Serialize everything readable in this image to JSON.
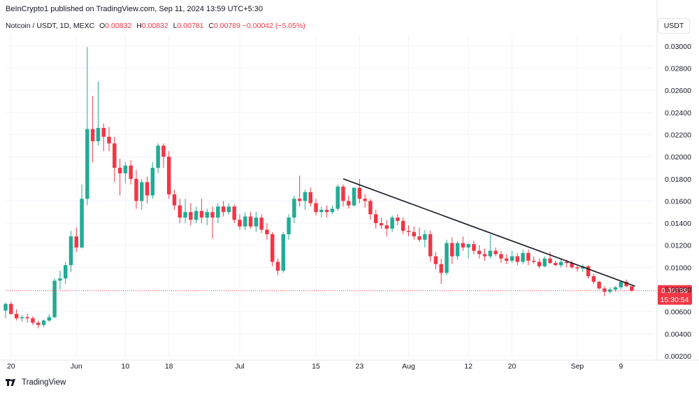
{
  "publisher_line": "BeInCrypto1 published on TradingView.com, Sep 11, 2024 13:59 UTC+5:30",
  "legend": {
    "symbol": "Notcoin / USDT, 1D, MEXC",
    "o_label": "O",
    "o_value": "0.00832",
    "h_label": "H",
    "h_value": "0.00832",
    "l_label": "L",
    "l_value": "0.00781",
    "c_label": "C",
    "c_value": "0.00789",
    "change": "−0.00042 (−5.05%)"
  },
  "currency_button": "USDT",
  "price_tag": {
    "price": "0.00789",
    "countdown": "15:30:54"
  },
  "footer": {
    "brand": "TradingView",
    "logo": "tradingview-logo-icon"
  },
  "colors": {
    "up": "#22ab94",
    "down": "#f23645",
    "trendline": "#131722",
    "grid": "#f0f3fa"
  },
  "chart_data": {
    "type": "candlestick",
    "y_axis": {
      "min": 0.002,
      "max": 0.031,
      "position": "right",
      "ticks": [
        "0.03000",
        "0.02800",
        "0.02600",
        "0.02400",
        "0.02200",
        "0.02000",
        "0.01800",
        "0.01600",
        "0.01400",
        "0.01200",
        "0.01000",
        "0.00800",
        "0.00600",
        "0.00400",
        "0.00200"
      ]
    },
    "x_axis": {
      "start_date": "2024-05-19",
      "end_date": "2024-09-15",
      "labels": [
        {
          "text": "20",
          "date": "2024-05-20"
        },
        {
          "text": "Jun",
          "date": "2024-06-01"
        },
        {
          "text": "10",
          "date": "2024-06-10"
        },
        {
          "text": "18",
          "date": "2024-06-18"
        },
        {
          "text": "Jul",
          "date": "2024-07-01"
        },
        {
          "text": "15",
          "date": "2024-07-15"
        },
        {
          "text": "23",
          "date": "2024-07-23"
        },
        {
          "text": "Aug",
          "date": "2024-08-01"
        },
        {
          "text": "12",
          "date": "2024-08-12"
        },
        {
          "text": "20",
          "date": "2024-08-20"
        },
        {
          "text": "Sep",
          "date": "2024-09-01"
        },
        {
          "text": "9",
          "date": "2024-09-09"
        }
      ]
    },
    "grid": true,
    "last_price_line": 0.00789,
    "trendline": {
      "from": {
        "date": "2024-07-20",
        "price": 0.018
      },
      "to": {
        "date": "2024-09-11",
        "price": 0.0083
      }
    },
    "candles": [
      {
        "d": "2024-05-19",
        "o": 0.0061,
        "h": 0.0068,
        "l": 0.0054,
        "c": 0.0067
      },
      {
        "d": "2024-05-20",
        "o": 0.0067,
        "h": 0.0069,
        "l": 0.0057,
        "c": 0.0058
      },
      {
        "d": "2024-05-21",
        "o": 0.0058,
        "h": 0.0062,
        "l": 0.0052,
        "c": 0.0054
      },
      {
        "d": "2024-05-22",
        "o": 0.0054,
        "h": 0.0057,
        "l": 0.0051,
        "c": 0.0055
      },
      {
        "d": "2024-05-23",
        "o": 0.0055,
        "h": 0.0058,
        "l": 0.005,
        "c": 0.0054
      },
      {
        "d": "2024-05-24",
        "o": 0.0054,
        "h": 0.0056,
        "l": 0.0048,
        "c": 0.005
      },
      {
        "d": "2024-05-25",
        "o": 0.005,
        "h": 0.0052,
        "l": 0.0045,
        "c": 0.0048
      },
      {
        "d": "2024-05-26",
        "o": 0.0048,
        "h": 0.0053,
        "l": 0.0046,
        "c": 0.0052
      },
      {
        "d": "2024-05-27",
        "o": 0.0052,
        "h": 0.0058,
        "l": 0.0051,
        "c": 0.0055
      },
      {
        "d": "2024-05-28",
        "o": 0.0055,
        "h": 0.009,
        "l": 0.0054,
        "c": 0.0088
      },
      {
        "d": "2024-05-29",
        "o": 0.0088,
        "h": 0.0097,
        "l": 0.008,
        "c": 0.009
      },
      {
        "d": "2024-05-30",
        "o": 0.009,
        "h": 0.0105,
        "l": 0.0085,
        "c": 0.0102
      },
      {
        "d": "2024-05-31",
        "o": 0.0102,
        "h": 0.0133,
        "l": 0.0096,
        "c": 0.0128
      },
      {
        "d": "2024-06-01",
        "o": 0.0128,
        "h": 0.0136,
        "l": 0.0114,
        "c": 0.0118
      },
      {
        "d": "2024-06-02",
        "o": 0.0118,
        "h": 0.0175,
        "l": 0.0117,
        "c": 0.0162
      },
      {
        "d": "2024-06-03",
        "o": 0.0162,
        "h": 0.0299,
        "l": 0.0156,
        "c": 0.0225
      },
      {
        "d": "2024-06-04",
        "o": 0.0225,
        "h": 0.0255,
        "l": 0.0195,
        "c": 0.0214
      },
      {
        "d": "2024-06-05",
        "o": 0.0214,
        "h": 0.0268,
        "l": 0.021,
        "c": 0.0226
      },
      {
        "d": "2024-06-06",
        "o": 0.0226,
        "h": 0.023,
        "l": 0.0205,
        "c": 0.0218
      },
      {
        "d": "2024-06-07",
        "o": 0.0218,
        "h": 0.0227,
        "l": 0.0205,
        "c": 0.0212
      },
      {
        "d": "2024-06-08",
        "o": 0.0212,
        "h": 0.0218,
        "l": 0.0177,
        "c": 0.019
      },
      {
        "d": "2024-06-09",
        "o": 0.019,
        "h": 0.0198,
        "l": 0.0165,
        "c": 0.0185
      },
      {
        "d": "2024-06-10",
        "o": 0.0185,
        "h": 0.0195,
        "l": 0.0176,
        "c": 0.0192
      },
      {
        "d": "2024-06-11",
        "o": 0.0192,
        "h": 0.0197,
        "l": 0.0175,
        "c": 0.018
      },
      {
        "d": "2024-06-12",
        "o": 0.018,
        "h": 0.0188,
        "l": 0.0153,
        "c": 0.016
      },
      {
        "d": "2024-06-13",
        "o": 0.016,
        "h": 0.018,
        "l": 0.0152,
        "c": 0.0177
      },
      {
        "d": "2024-06-14",
        "o": 0.0177,
        "h": 0.0182,
        "l": 0.0158,
        "c": 0.0165
      },
      {
        "d": "2024-06-15",
        "o": 0.0165,
        "h": 0.0195,
        "l": 0.0162,
        "c": 0.019
      },
      {
        "d": "2024-06-16",
        "o": 0.019,
        "h": 0.0212,
        "l": 0.0185,
        "c": 0.021
      },
      {
        "d": "2024-06-17",
        "o": 0.021,
        "h": 0.0212,
        "l": 0.019,
        "c": 0.02
      },
      {
        "d": "2024-06-18",
        "o": 0.02,
        "h": 0.0205,
        "l": 0.0162,
        "c": 0.0166
      },
      {
        "d": "2024-06-19",
        "o": 0.0166,
        "h": 0.017,
        "l": 0.0152,
        "c": 0.0156
      },
      {
        "d": "2024-06-20",
        "o": 0.0156,
        "h": 0.0162,
        "l": 0.014,
        "c": 0.0145
      },
      {
        "d": "2024-06-21",
        "o": 0.0145,
        "h": 0.0162,
        "l": 0.014,
        "c": 0.015
      },
      {
        "d": "2024-06-22",
        "o": 0.015,
        "h": 0.0158,
        "l": 0.0138,
        "c": 0.0143
      },
      {
        "d": "2024-06-23",
        "o": 0.0143,
        "h": 0.0155,
        "l": 0.014,
        "c": 0.0151
      },
      {
        "d": "2024-06-24",
        "o": 0.0151,
        "h": 0.0162,
        "l": 0.014,
        "c": 0.0145
      },
      {
        "d": "2024-06-25",
        "o": 0.0145,
        "h": 0.0153,
        "l": 0.0138,
        "c": 0.015
      },
      {
        "d": "2024-06-26",
        "o": 0.015,
        "h": 0.0155,
        "l": 0.0126,
        "c": 0.0145
      },
      {
        "d": "2024-06-27",
        "o": 0.0145,
        "h": 0.0158,
        "l": 0.014,
        "c": 0.0155
      },
      {
        "d": "2024-06-28",
        "o": 0.0155,
        "h": 0.016,
        "l": 0.0146,
        "c": 0.015
      },
      {
        "d": "2024-06-29",
        "o": 0.015,
        "h": 0.0158,
        "l": 0.0148,
        "c": 0.0155
      },
      {
        "d": "2024-06-30",
        "o": 0.0155,
        "h": 0.0157,
        "l": 0.014,
        "c": 0.0143
      },
      {
        "d": "2024-07-01",
        "o": 0.0143,
        "h": 0.0148,
        "l": 0.0134,
        "c": 0.0137
      },
      {
        "d": "2024-07-02",
        "o": 0.0137,
        "h": 0.015,
        "l": 0.0134,
        "c": 0.0146
      },
      {
        "d": "2024-07-03",
        "o": 0.0146,
        "h": 0.015,
        "l": 0.0135,
        "c": 0.0137
      },
      {
        "d": "2024-07-04",
        "o": 0.0137,
        "h": 0.015,
        "l": 0.0132,
        "c": 0.0145
      },
      {
        "d": "2024-07-05",
        "o": 0.0145,
        "h": 0.0148,
        "l": 0.0131,
        "c": 0.0134
      },
      {
        "d": "2024-07-06",
        "o": 0.0134,
        "h": 0.014,
        "l": 0.0125,
        "c": 0.013
      },
      {
        "d": "2024-07-07",
        "o": 0.013,
        "h": 0.0132,
        "l": 0.0101,
        "c": 0.0105
      },
      {
        "d": "2024-07-08",
        "o": 0.0105,
        "h": 0.0108,
        "l": 0.0093,
        "c": 0.0097
      },
      {
        "d": "2024-07-09",
        "o": 0.0097,
        "h": 0.0132,
        "l": 0.0095,
        "c": 0.013
      },
      {
        "d": "2024-07-10",
        "o": 0.013,
        "h": 0.0148,
        "l": 0.0125,
        "c": 0.0145
      },
      {
        "d": "2024-07-11",
        "o": 0.0145,
        "h": 0.0165,
        "l": 0.014,
        "c": 0.0162
      },
      {
        "d": "2024-07-12",
        "o": 0.0162,
        "h": 0.0183,
        "l": 0.0155,
        "c": 0.016
      },
      {
        "d": "2024-07-13",
        "o": 0.016,
        "h": 0.017,
        "l": 0.0152,
        "c": 0.0168
      },
      {
        "d": "2024-07-14",
        "o": 0.0168,
        "h": 0.0172,
        "l": 0.0155,
        "c": 0.0158
      },
      {
        "d": "2024-07-15",
        "o": 0.0158,
        "h": 0.0162,
        "l": 0.0147,
        "c": 0.015
      },
      {
        "d": "2024-07-16",
        "o": 0.015,
        "h": 0.0155,
        "l": 0.0145,
        "c": 0.0152
      },
      {
        "d": "2024-07-17",
        "o": 0.0152,
        "h": 0.0156,
        "l": 0.0145,
        "c": 0.015
      },
      {
        "d": "2024-07-18",
        "o": 0.015,
        "h": 0.0156,
        "l": 0.0148,
        "c": 0.0153
      },
      {
        "d": "2024-07-19",
        "o": 0.0153,
        "h": 0.0175,
        "l": 0.0151,
        "c": 0.0173
      },
      {
        "d": "2024-07-20",
        "o": 0.0173,
        "h": 0.0175,
        "l": 0.0155,
        "c": 0.016
      },
      {
        "d": "2024-07-21",
        "o": 0.016,
        "h": 0.0165,
        "l": 0.0153,
        "c": 0.0156
      },
      {
        "d": "2024-07-22",
        "o": 0.0156,
        "h": 0.0172,
        "l": 0.0155,
        "c": 0.0172
      },
      {
        "d": "2024-07-23",
        "o": 0.0172,
        "h": 0.018,
        "l": 0.0158,
        "c": 0.0162
      },
      {
        "d": "2024-07-24",
        "o": 0.0162,
        "h": 0.0166,
        "l": 0.0154,
        "c": 0.016
      },
      {
        "d": "2024-07-25",
        "o": 0.016,
        "h": 0.0162,
        "l": 0.0143,
        "c": 0.0148
      },
      {
        "d": "2024-07-26",
        "o": 0.0148,
        "h": 0.0152,
        "l": 0.0135,
        "c": 0.014
      },
      {
        "d": "2024-07-27",
        "o": 0.014,
        "h": 0.0145,
        "l": 0.0135,
        "c": 0.0138
      },
      {
        "d": "2024-07-28",
        "o": 0.0138,
        "h": 0.0143,
        "l": 0.0128,
        "c": 0.0135
      },
      {
        "d": "2024-07-29",
        "o": 0.0135,
        "h": 0.0147,
        "l": 0.0132,
        "c": 0.0145
      },
      {
        "d": "2024-07-30",
        "o": 0.0145,
        "h": 0.0148,
        "l": 0.0138,
        "c": 0.0142
      },
      {
        "d": "2024-07-31",
        "o": 0.0142,
        "h": 0.0145,
        "l": 0.013,
        "c": 0.0133
      },
      {
        "d": "2024-08-01",
        "o": 0.0133,
        "h": 0.0138,
        "l": 0.0128,
        "c": 0.0132
      },
      {
        "d": "2024-08-02",
        "o": 0.0132,
        "h": 0.0137,
        "l": 0.0125,
        "c": 0.0128
      },
      {
        "d": "2024-08-03",
        "o": 0.0128,
        "h": 0.0136,
        "l": 0.0123,
        "c": 0.0125
      },
      {
        "d": "2024-08-04",
        "o": 0.0125,
        "h": 0.0134,
        "l": 0.0118,
        "c": 0.013
      },
      {
        "d": "2024-08-05",
        "o": 0.013,
        "h": 0.0133,
        "l": 0.0105,
        "c": 0.011
      },
      {
        "d": "2024-08-06",
        "o": 0.011,
        "h": 0.0114,
        "l": 0.0098,
        "c": 0.0103
      },
      {
        "d": "2024-08-07",
        "o": 0.0103,
        "h": 0.0108,
        "l": 0.0085,
        "c": 0.0095
      },
      {
        "d": "2024-08-08",
        "o": 0.0095,
        "h": 0.0125,
        "l": 0.0093,
        "c": 0.0122
      },
      {
        "d": "2024-08-09",
        "o": 0.0122,
        "h": 0.0127,
        "l": 0.0103,
        "c": 0.011
      },
      {
        "d": "2024-08-10",
        "o": 0.011,
        "h": 0.0124,
        "l": 0.0107,
        "c": 0.0122
      },
      {
        "d": "2024-08-11",
        "o": 0.0122,
        "h": 0.0128,
        "l": 0.0115,
        "c": 0.0118
      },
      {
        "d": "2024-08-12",
        "o": 0.0118,
        "h": 0.0122,
        "l": 0.0108,
        "c": 0.0121
      },
      {
        "d": "2024-08-13",
        "o": 0.0121,
        "h": 0.0124,
        "l": 0.0112,
        "c": 0.0115
      },
      {
        "d": "2024-08-14",
        "o": 0.0115,
        "h": 0.012,
        "l": 0.0108,
        "c": 0.0112
      },
      {
        "d": "2024-08-15",
        "o": 0.0112,
        "h": 0.0117,
        "l": 0.0106,
        "c": 0.011
      },
      {
        "d": "2024-08-16",
        "o": 0.011,
        "h": 0.013,
        "l": 0.0108,
        "c": 0.0115
      },
      {
        "d": "2024-08-17",
        "o": 0.0115,
        "h": 0.0118,
        "l": 0.011,
        "c": 0.0112
      },
      {
        "d": "2024-08-18",
        "o": 0.0112,
        "h": 0.0115,
        "l": 0.0104,
        "c": 0.0108
      },
      {
        "d": "2024-08-19",
        "o": 0.0108,
        "h": 0.0112,
        "l": 0.0103,
        "c": 0.0106
      },
      {
        "d": "2024-08-20",
        "o": 0.0106,
        "h": 0.0115,
        "l": 0.0104,
        "c": 0.011
      },
      {
        "d": "2024-08-21",
        "o": 0.011,
        "h": 0.0113,
        "l": 0.0102,
        "c": 0.0105
      },
      {
        "d": "2024-08-22",
        "o": 0.0105,
        "h": 0.0116,
        "l": 0.0103,
        "c": 0.0113
      },
      {
        "d": "2024-08-23",
        "o": 0.0113,
        "h": 0.0116,
        "l": 0.0102,
        "c": 0.0106
      },
      {
        "d": "2024-08-24",
        "o": 0.0106,
        "h": 0.011,
        "l": 0.0103,
        "c": 0.0105
      },
      {
        "d": "2024-08-25",
        "o": 0.0105,
        "h": 0.0108,
        "l": 0.0099,
        "c": 0.0101
      },
      {
        "d": "2024-08-26",
        "o": 0.0101,
        "h": 0.011,
        "l": 0.01,
        "c": 0.0108
      },
      {
        "d": "2024-08-27",
        "o": 0.0108,
        "h": 0.0114,
        "l": 0.0103,
        "c": 0.0104
      },
      {
        "d": "2024-08-28",
        "o": 0.0104,
        "h": 0.0106,
        "l": 0.0101,
        "c": 0.0102
      },
      {
        "d": "2024-08-29",
        "o": 0.0102,
        "h": 0.0107,
        "l": 0.01,
        "c": 0.0105
      },
      {
        "d": "2024-08-30",
        "o": 0.0105,
        "h": 0.0107,
        "l": 0.01,
        "c": 0.0104
      },
      {
        "d": "2024-08-31",
        "o": 0.0104,
        "h": 0.0106,
        "l": 0.0099,
        "c": 0.01
      },
      {
        "d": "2024-09-01",
        "o": 0.01,
        "h": 0.0102,
        "l": 0.0096,
        "c": 0.0099
      },
      {
        "d": "2024-09-02",
        "o": 0.0099,
        "h": 0.0103,
        "l": 0.0096,
        "c": 0.0101
      },
      {
        "d": "2024-09-03",
        "o": 0.0101,
        "h": 0.0102,
        "l": 0.009,
        "c": 0.0092
      },
      {
        "d": "2024-09-04",
        "o": 0.0092,
        "h": 0.0094,
        "l": 0.0085,
        "c": 0.0087
      },
      {
        "d": "2024-09-05",
        "o": 0.0087,
        "h": 0.0088,
        "l": 0.008,
        "c": 0.0081
      },
      {
        "d": "2024-09-06",
        "o": 0.0081,
        "h": 0.0083,
        "l": 0.0074,
        "c": 0.0078
      },
      {
        "d": "2024-09-07",
        "o": 0.0078,
        "h": 0.0082,
        "l": 0.0076,
        "c": 0.008
      },
      {
        "d": "2024-09-08",
        "o": 0.008,
        "h": 0.0083,
        "l": 0.0078,
        "c": 0.0082
      },
      {
        "d": "2024-09-09",
        "o": 0.0082,
        "h": 0.0088,
        "l": 0.008,
        "c": 0.0087
      },
      {
        "d": "2024-09-10",
        "o": 0.0087,
        "h": 0.0089,
        "l": 0.0082,
        "c": 0.0083
      },
      {
        "d": "2024-09-11",
        "o": 0.0083,
        "h": 0.0083,
        "l": 0.0078,
        "c": 0.0079
      }
    ]
  }
}
